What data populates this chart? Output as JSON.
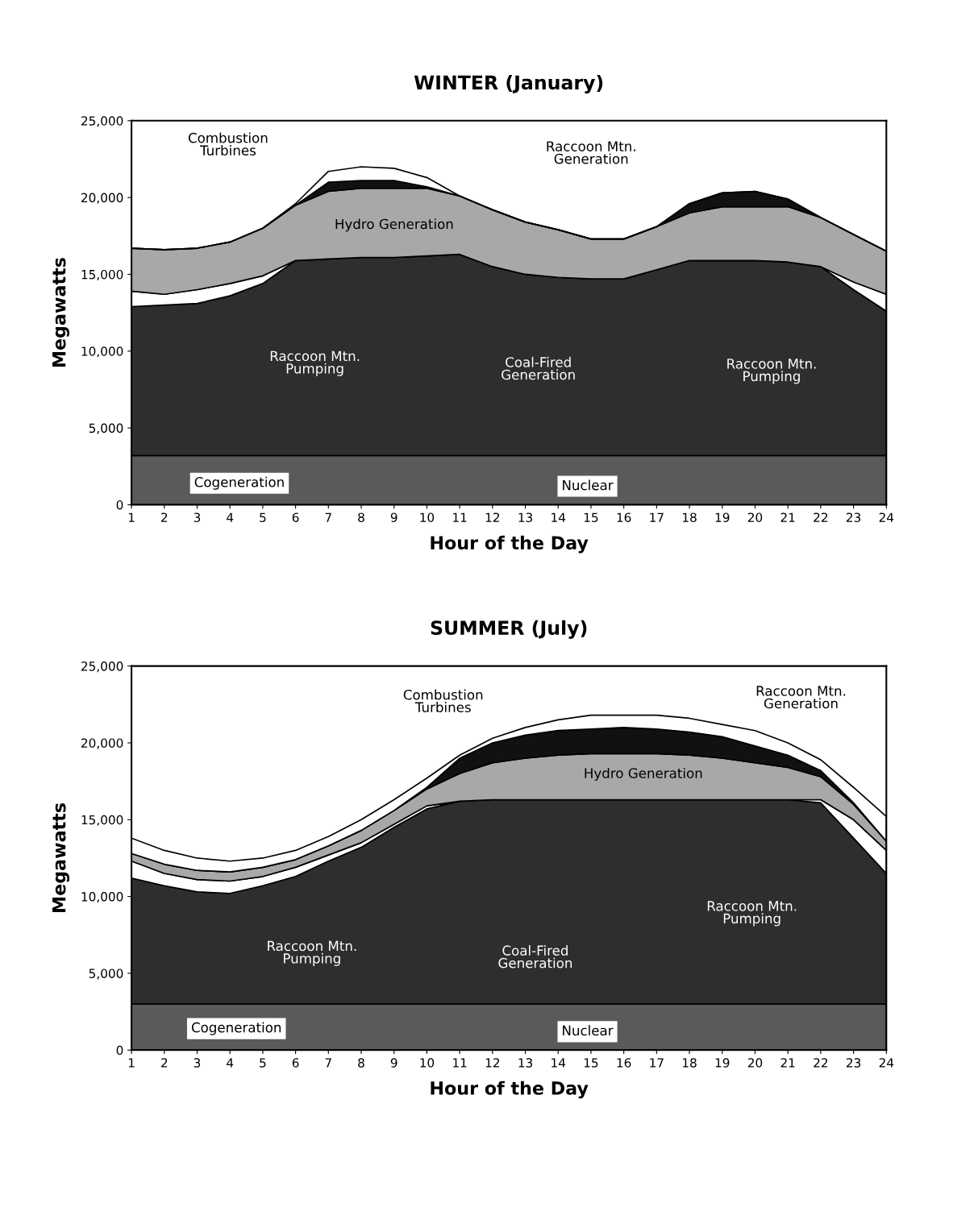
{
  "chart_data": [
    {
      "type": "area",
      "stacked": true,
      "title": "WINTER (January)",
      "xlabel": "Hour of the Day",
      "ylabel": "Megawatts",
      "grid": false,
      "x": [
        1,
        2,
        3,
        4,
        5,
        6,
        7,
        8,
        9,
        10,
        11,
        12,
        13,
        14,
        15,
        16,
        17,
        18,
        19,
        20,
        21,
        22,
        23,
        24
      ],
      "xlim": [
        1,
        24
      ],
      "xticks": [
        1,
        2,
        3,
        4,
        5,
        6,
        7,
        8,
        9,
        10,
        11,
        12,
        13,
        14,
        15,
        16,
        17,
        18,
        19,
        20,
        21,
        22,
        23,
        24
      ],
      "ylim": [
        0,
        25000
      ],
      "yticks": [
        0,
        {
          "value": 5000,
          "label": "5,000"
        },
        {
          "value": 10000,
          "label": "10,000"
        },
        {
          "value": 15000,
          "label": "15,000"
        },
        {
          "value": 20000,
          "label": "20,000"
        },
        {
          "value": 25000,
          "label": "25,000"
        }
      ],
      "series": [
        {
          "color": "#5a5a5a",
          "values": [
            3200,
            3200,
            3200,
            3200,
            3200,
            3200,
            3200,
            3200,
            3200,
            3200,
            3200,
            3200,
            3200,
            3200,
            3200,
            3200,
            3200,
            3200,
            3200,
            3200,
            3200,
            3200,
            3200,
            3200
          ]
        },
        {
          "color": "#2e2e2e",
          "values": [
            9700,
            9800,
            9900,
            10400,
            11200,
            12700,
            12800,
            12900,
            12900,
            13000,
            13100,
            12300,
            11800,
            11600,
            11500,
            11500,
            12100,
            12700,
            12700,
            12700,
            12600,
            12300,
            10800,
            9400
          ]
        },
        {
          "color": "#ffffff",
          "values": [
            1000,
            700,
            900,
            800,
            500,
            0,
            0,
            0,
            0,
            0,
            0,
            0,
            0,
            0,
            0,
            0,
            0,
            0,
            0,
            0,
            0,
            0,
            500,
            1100
          ]
        },
        {
          "color": "#a8a8a8",
          "values": [
            2800,
            2900,
            2700,
            2700,
            3100,
            3600,
            4400,
            4500,
            4500,
            4400,
            3800,
            3700,
            3400,
            3100,
            2600,
            2600,
            2800,
            3100,
            3500,
            3500,
            3600,
            3200,
            3100,
            2800
          ]
        },
        {
          "color": "#111111",
          "values": [
            0,
            0,
            0,
            0,
            0,
            0,
            600,
            500,
            500,
            100,
            0,
            0,
            0,
            0,
            0,
            0,
            0,
            600,
            900,
            1000,
            500,
            0,
            0,
            0
          ]
        },
        {
          "color": "#ffffff",
          "values": [
            0,
            0,
            0,
            0,
            0,
            100,
            700,
            900,
            800,
            600,
            0,
            0,
            0,
            0,
            0,
            0,
            0,
            0,
            0,
            0,
            0,
            0,
            0,
            0
          ]
        }
      ],
      "annotations": [
        "Combustion\nTurbines",
        "Raccoon Mtn.\nGeneration",
        "Hydro Generation",
        "Raccoon Mtn.\nPumping",
        "Coal-Fired\nGeneration",
        "Raccoon Mtn.\nPumping",
        "Cogeneration",
        "Nuclear"
      ]
    },
    {
      "type": "area",
      "stacked": true,
      "title": "SUMMER (July)",
      "xlabel": "Hour of the Day",
      "ylabel": "Megawatts",
      "grid": false,
      "x": [
        1,
        2,
        3,
        4,
        5,
        6,
        7,
        8,
        9,
        10,
        11,
        12,
        13,
        14,
        15,
        16,
        17,
        18,
        19,
        20,
        21,
        22,
        23,
        24
      ],
      "xlim": [
        1,
        24
      ],
      "xticks": [
        1,
        2,
        3,
        4,
        5,
        6,
        7,
        8,
        9,
        10,
        11,
        12,
        13,
        14,
        15,
        16,
        17,
        18,
        19,
        20,
        21,
        22,
        23,
        24
      ],
      "ylim": [
        0,
        25000
      ],
      "yticks": [
        0,
        {
          "value": 5000,
          "label": "5,000"
        },
        {
          "value": 10000,
          "label": "10,000"
        },
        {
          "value": 15000,
          "label": "15,000"
        },
        {
          "value": 20000,
          "label": "20,000"
        },
        {
          "value": 25000,
          "label": "25,000"
        }
      ],
      "series": [
        {
          "color": "#5a5a5a",
          "values": [
            3000,
            3000,
            3000,
            3000,
            3000,
            3000,
            3000,
            3000,
            3000,
            3000,
            3000,
            3000,
            3000,
            3000,
            3000,
            3000,
            3000,
            3000,
            3000,
            3000,
            3000,
            3000,
            3000,
            3000
          ]
        },
        {
          "color": "#2e2e2e",
          "values": [
            8200,
            7700,
            7300,
            7200,
            7700,
            8300,
            9300,
            10200,
            11500,
            12700,
            13200,
            13300,
            13300,
            13300,
            13300,
            13300,
            13300,
            13300,
            13300,
            13300,
            13300,
            13100,
            10800,
            8500
          ]
        },
        {
          "color": "#ffffff",
          "values": [
            1100,
            800,
            800,
            800,
            600,
            600,
            400,
            300,
            200,
            200,
            0,
            0,
            0,
            0,
            0,
            0,
            0,
            0,
            0,
            0,
            0,
            200,
            1200,
            1500
          ]
        },
        {
          "color": "#a8a8a8",
          "values": [
            500,
            600,
            600,
            600,
            600,
            500,
            600,
            800,
            900,
            1100,
            1800,
            2400,
            2700,
            2900,
            3000,
            3000,
            3000,
            2900,
            2700,
            2400,
            2100,
            1500,
            1000,
            600
          ]
        },
        {
          "color": "#111111",
          "values": [
            0,
            0,
            0,
            0,
            0,
            0,
            0,
            0,
            0,
            100,
            1000,
            1300,
            1500,
            1600,
            1600,
            1700,
            1600,
            1500,
            1400,
            1100,
            800,
            400,
            100,
            0
          ]
        },
        {
          "color": "#ffffff",
          "values": [
            1000,
            900,
            800,
            700,
            600,
            600,
            600,
            700,
            700,
            600,
            200,
            300,
            500,
            700,
            900,
            800,
            900,
            900,
            800,
            1000,
            800,
            700,
            1000,
            1600
          ]
        }
      ],
      "annotations": [
        "Combustion\nTurbines",
        "Raccoon Mtn.\nGeneration",
        "Hydro Generation",
        "Raccoon Mtn.\nPumping",
        "Coal-Fired\nGeneration",
        "Raccoon Mtn.\nPumping",
        "Cogeneration",
        "Nuclear"
      ]
    }
  ]
}
